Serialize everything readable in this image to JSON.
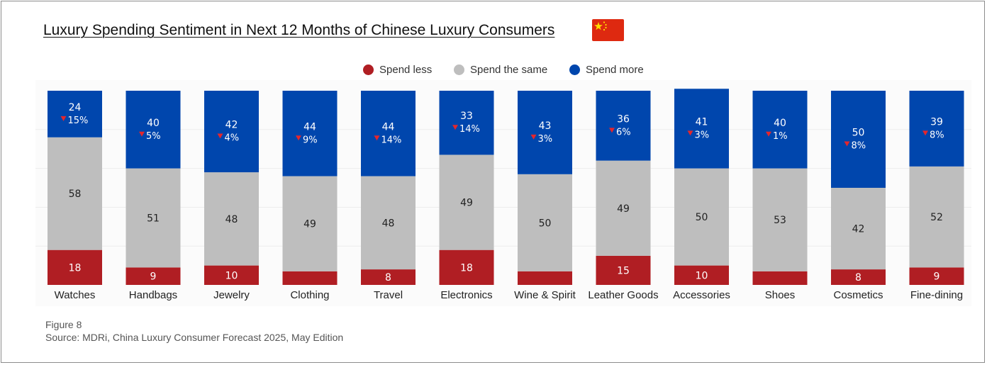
{
  "title": "Luxury Spending Sentiment in Next 12 Months of Chinese Luxury Consumers",
  "flag_icon": "china-flag-icon",
  "footer": {
    "figure": "Figure 8",
    "source": "Source: MDRi, China Luxury Consumer Forecast 2025, May Edition"
  },
  "colors": {
    "spend_less": "#b01e23",
    "spend_same": "#bebebe",
    "spend_more": "#0046ad",
    "down_arrow": "#e3262d"
  },
  "chart_data": {
    "type": "bar",
    "stacked": true,
    "normalized": true,
    "ylim": [
      0,
      100
    ],
    "grid": true,
    "legend_position": "top-center",
    "categories": [
      "Watches",
      "Handbags",
      "Jewelry",
      "Clothing",
      "Travel",
      "Electronics",
      "Wine & Spirit",
      "Leather Goods",
      "Accessories",
      "Shoes",
      "Cosmetics",
      "Fine-dining"
    ],
    "series": [
      {
        "name": "Spend less",
        "values": [
          18,
          9,
          10,
          7,
          8,
          18,
          7,
          15,
          10,
          7,
          8,
          9
        ],
        "labels": [
          "18",
          "9",
          "10",
          "",
          "8",
          "18",
          "",
          "15",
          "10",
          "",
          "8",
          "9"
        ]
      },
      {
        "name": "Spend the same",
        "values": [
          58,
          51,
          48,
          49,
          48,
          49,
          50,
          49,
          50,
          53,
          42,
          52
        ],
        "labels": [
          "58",
          "51",
          "48",
          "49",
          "48",
          "49",
          "50",
          "49",
          "50",
          "53",
          "42",
          "52"
        ]
      },
      {
        "name": "Spend more",
        "values": [
          24,
          40,
          42,
          44,
          44,
          33,
          43,
          36,
          41,
          40,
          50,
          39
        ],
        "labels": [
          "24",
          "40",
          "42",
          "44",
          "44",
          "33",
          "43",
          "36",
          "41",
          "40",
          "50",
          "39"
        ]
      }
    ],
    "spend_more_change": [
      "15%",
      "5%",
      "4%",
      "9%",
      "14%",
      "14%",
      "3%",
      "6%",
      "3%",
      "1%",
      "8%",
      "8%"
    ],
    "spend_more_change_direction": "down"
  }
}
